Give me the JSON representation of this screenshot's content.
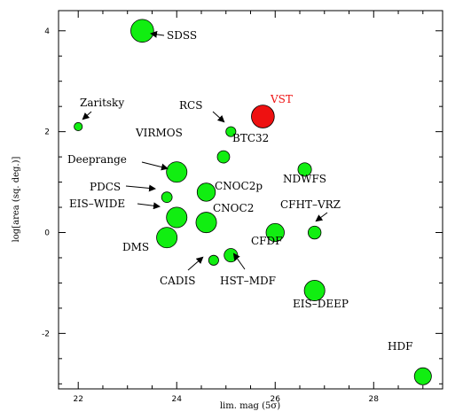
{
  "chart_data": {
    "type": "scatter",
    "xlabel": "lim. mag (5σ)",
    "ylabel": "log[area (sq. deg.)]",
    "xlim": [
      21.6,
      29.4
    ],
    "ylim": [
      -3.1,
      4.4
    ],
    "x_ticks": [
      22,
      24,
      26,
      28
    ],
    "y_ticks": [
      -2,
      0,
      2,
      4
    ],
    "marker_color": "#11ee11",
    "highlight_color": "#ee1111",
    "points": [
      {
        "label": "SDSS",
        "x": 23.3,
        "y": 4.0,
        "size": 3,
        "label_pos": "right-arrow"
      },
      {
        "label": "Zaritsky",
        "x": 22.0,
        "y": 2.1,
        "size": 0.5,
        "label_pos": "above-right"
      },
      {
        "label": "RCS",
        "x": 25.1,
        "y": 2.0,
        "size": 0.8,
        "label_pos": "left-above"
      },
      {
        "label": "VST",
        "x": 25.75,
        "y": 2.3,
        "size": 3,
        "highlight": true,
        "label_pos": "above-right"
      },
      {
        "label": "BTC32",
        "x": 24.95,
        "y": 1.5,
        "size": 1.2,
        "label_pos": "right"
      },
      {
        "label": "VIRMOS",
        "x": 24.0,
        "y": 1.2,
        "size": 2.6,
        "label_pos": "above"
      },
      {
        "label": "Deeprange",
        "x": 24.0,
        "y": 1.2,
        "size": 0,
        "label_pos": "left"
      },
      {
        "label": "NDWFS",
        "x": 26.6,
        "y": 1.25,
        "size": 1.4,
        "label_pos": "below"
      },
      {
        "label": "CNOC2p",
        "x": 24.6,
        "y": 0.8,
        "size": 2.2,
        "label_pos": "right"
      },
      {
        "label": "PDCS",
        "x": 23.8,
        "y": 0.7,
        "size": 0.9,
        "label_pos": "left"
      },
      {
        "label": "EIS–WIDE",
        "x": 24.0,
        "y": 0.3,
        "size": 2.6,
        "label_pos": "left"
      },
      {
        "label": "CNOC2",
        "x": 24.6,
        "y": 0.2,
        "size": 2.6,
        "label_pos": "right"
      },
      {
        "label": "CFHT–VRZ",
        "x": 26.8,
        "y": 0.0,
        "size": 1.3,
        "label_pos": "above-right"
      },
      {
        "label": "CFDF",
        "x": 26.0,
        "y": 0.0,
        "size": 2.2,
        "label_pos": "below"
      },
      {
        "label": "DMS",
        "x": 23.8,
        "y": -0.1,
        "size": 2.6,
        "label_pos": "below-left"
      },
      {
        "label": "CADIS",
        "x": 24.75,
        "y": -0.55,
        "size": 0.8,
        "label_pos": "below-left"
      },
      {
        "label": "HST–MDF",
        "x": 25.1,
        "y": -0.45,
        "size": 1.4,
        "label_pos": "below-right"
      },
      {
        "label": "EIS–DEEP",
        "x": 26.8,
        "y": -1.15,
        "size": 2.6,
        "label_pos": "below"
      },
      {
        "label": "HDF",
        "x": 29.0,
        "y": -2.85,
        "size": 2.0,
        "label_pos": "above-left"
      }
    ]
  }
}
